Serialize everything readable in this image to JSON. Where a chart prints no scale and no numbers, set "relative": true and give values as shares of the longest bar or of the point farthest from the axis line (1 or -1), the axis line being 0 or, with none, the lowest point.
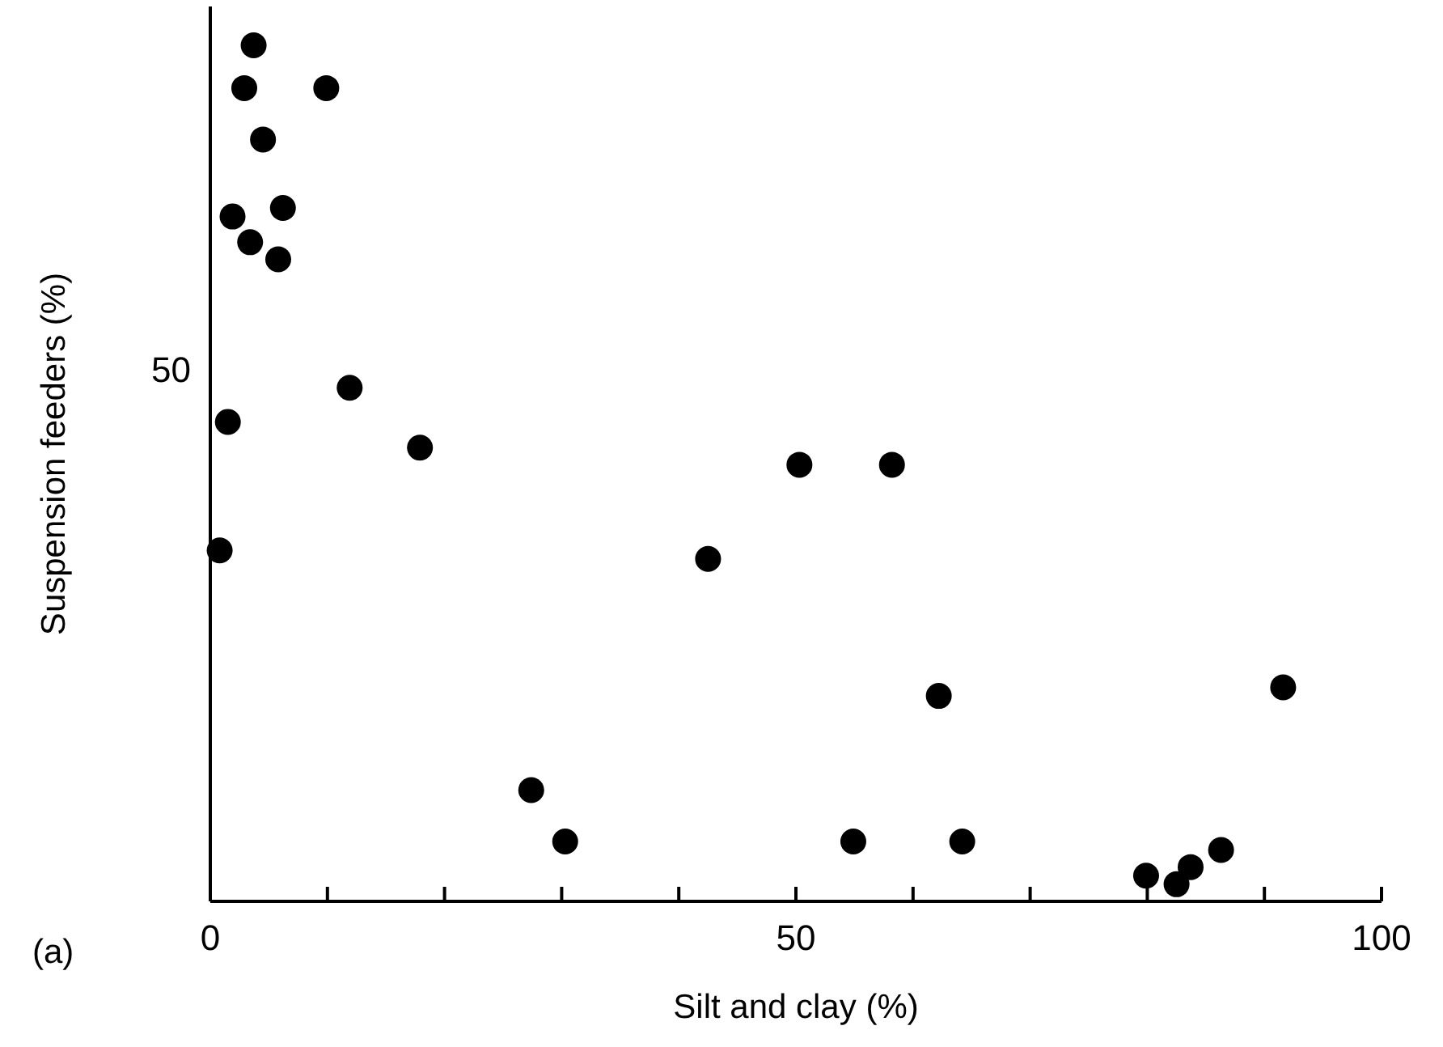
{
  "chart_data": {
    "type": "scatter",
    "xlabel": "Silt and clay (%)",
    "ylabel": "Suspension feeders (%)",
    "annotations": [
      "(a)",
      "50"
    ],
    "relative": true,
    "xlim": [
      0,
      100
    ],
    "xticks": [
      0,
      {
        "value": 10,
        "label": null
      },
      {
        "value": 20,
        "label": null
      },
      {
        "value": 30,
        "label": null
      },
      {
        "value": 40,
        "label": null
      },
      50,
      {
        "value": 60,
        "label": null
      },
      {
        "value": 70,
        "label": null
      },
      {
        "value": 80,
        "label": null
      },
      {
        "value": 90,
        "label": null
      },
      100
    ],
    "marker": "circle",
    "series": [
      {
        "color": "#000000",
        "x": [
          3.7,
          9.9,
          2.9,
          4.5,
          6.2,
          1.9,
          3.4,
          5.8,
          11.9,
          1.5,
          17.9,
          0.8,
          42.5,
          50.3,
          58.2,
          62.2,
          91.6,
          27.4,
          30.3,
          54.9,
          64.2,
          79.9,
          82.5,
          83.7,
          86.3
        ],
        "values": [
          1.0,
          0.95,
          0.95,
          0.89,
          0.81,
          0.8,
          0.77,
          0.75,
          0.6,
          0.56,
          0.53,
          0.41,
          0.4,
          0.51,
          0.51,
          0.24,
          0.25,
          0.13,
          0.07,
          0.07,
          0.07,
          0.03,
          0.02,
          0.04,
          0.06
        ]
      }
    ]
  }
}
